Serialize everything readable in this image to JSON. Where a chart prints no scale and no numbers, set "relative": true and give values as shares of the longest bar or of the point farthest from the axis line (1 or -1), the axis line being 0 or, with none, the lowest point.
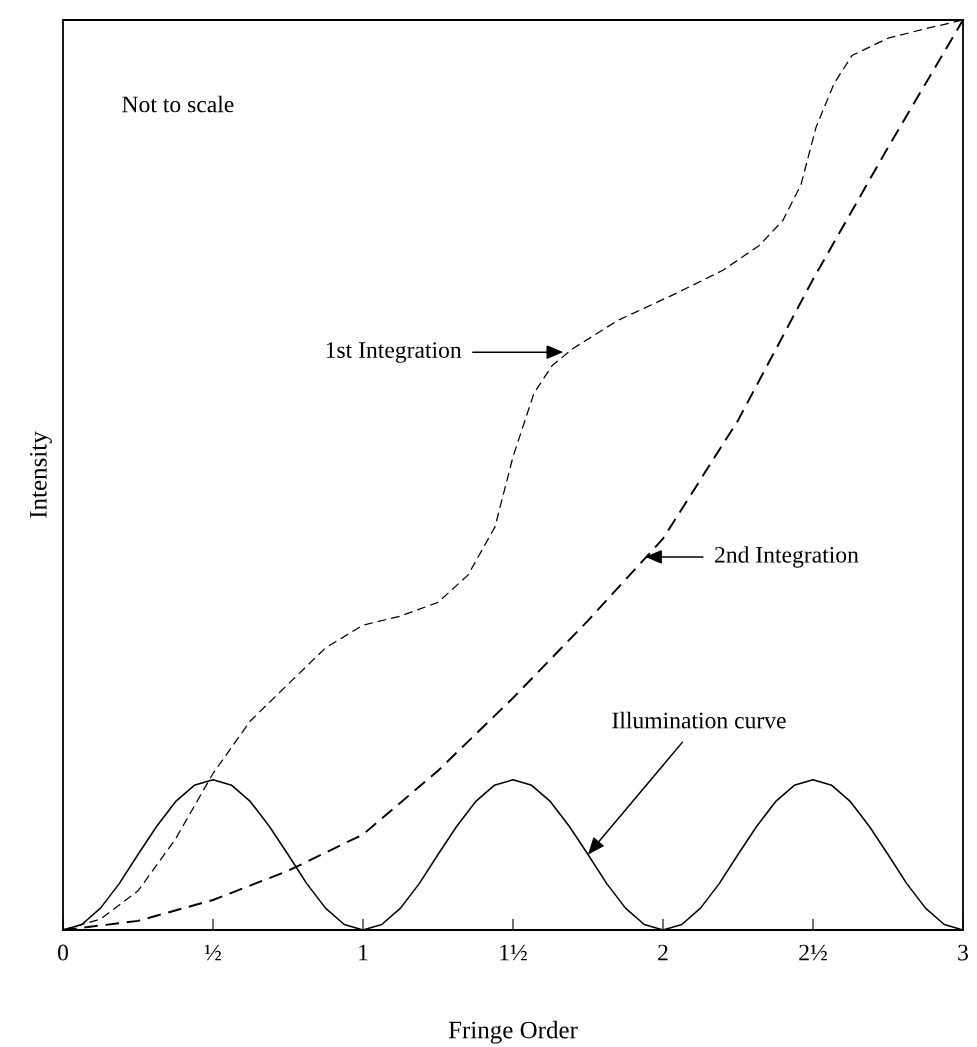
{
  "chart_data": {
    "type": "line",
    "relative": true,
    "xlabel": "Fringe Order",
    "ylabel": "Intensity",
    "xlim": [
      0,
      3
    ],
    "xticks": [
      0,
      {
        "value": 0.5,
        "label": "½"
      },
      1,
      {
        "value": 1.5,
        "label": "1½"
      },
      2,
      {
        "value": 2.5,
        "label": "2½"
      },
      3
    ],
    "grid": false,
    "legend": false,
    "series": [
      {
        "color": "#000000",
        "line_style": "solid",
        "x": [
          0,
          0.0625,
          0.125,
          0.1875,
          0.25,
          0.3125,
          0.375,
          0.4375,
          0.5,
          0.5625,
          0.625,
          0.6875,
          0.75,
          0.8125,
          0.875,
          0.9375,
          1,
          1.0625,
          1.125,
          1.1875,
          1.25,
          1.3125,
          1.375,
          1.4375,
          1.5,
          1.5625,
          1.625,
          1.6875,
          1.75,
          1.8125,
          1.875,
          1.9375,
          2,
          2.0625,
          2.125,
          2.1875,
          2.25,
          2.3125,
          2.375,
          2.4375,
          2.5,
          2.5625,
          2.625,
          2.6875,
          2.75,
          2.8125,
          2.875,
          2.9375,
          3
        ],
        "values": [
          0,
          0.006,
          0.024,
          0.051,
          0.083,
          0.114,
          0.141,
          0.159,
          0.165,
          0.159,
          0.141,
          0.114,
          0.083,
          0.051,
          0.024,
          0.006,
          0,
          0.006,
          0.024,
          0.051,
          0.083,
          0.114,
          0.141,
          0.159,
          0.165,
          0.159,
          0.141,
          0.114,
          0.083,
          0.051,
          0.024,
          0.006,
          0,
          0.006,
          0.024,
          0.051,
          0.083,
          0.114,
          0.141,
          0.159,
          0.165,
          0.159,
          0.141,
          0.114,
          0.083,
          0.051,
          0.024,
          0.006,
          0
        ]
      },
      {
        "color": "#000000",
        "line_style": "dashed",
        "x": [
          0,
          0.125,
          0.25,
          0.375,
          0.5,
          0.625,
          0.75,
          0.875,
          1,
          1.125,
          1.25,
          1.35,
          1.44,
          1.5,
          1.57,
          1.63,
          1.7,
          1.85,
          2.04,
          2.2,
          2.32,
          2.4,
          2.46,
          2.51,
          2.57,
          2.63,
          2.75,
          2.87,
          3
        ],
        "values": [
          0,
          0.012,
          0.043,
          0.1,
          0.172,
          0.23,
          0.27,
          0.31,
          0.335,
          0.345,
          0.36,
          0.39,
          0.443,
          0.52,
          0.59,
          0.62,
          0.639,
          0.67,
          0.699,
          0.725,
          0.752,
          0.78,
          0.819,
          0.882,
          0.93,
          0.961,
          0.98,
          0.99,
          1
        ]
      },
      {
        "color": "#000000",
        "line_style": "dashed",
        "x": [
          0,
          0.25,
          0.5,
          0.75,
          1,
          1.25,
          1.5,
          1.75,
          2,
          2.25,
          2.5,
          2.75,
          3
        ],
        "values": [
          0,
          0.01,
          0.033,
          0.065,
          0.105,
          0.175,
          0.255,
          0.34,
          0.43,
          0.56,
          0.715,
          0.86,
          1
        ]
      }
    ],
    "annotations": [
      "Not to scale",
      "1st Integration",
      {
        "text": "2nd Integration",
        "x": 1.94,
        "y": 0.41
      },
      {
        "text": "Illumination curve",
        "x": 1.75,
        "y": 0.083
      }
    ]
  }
}
